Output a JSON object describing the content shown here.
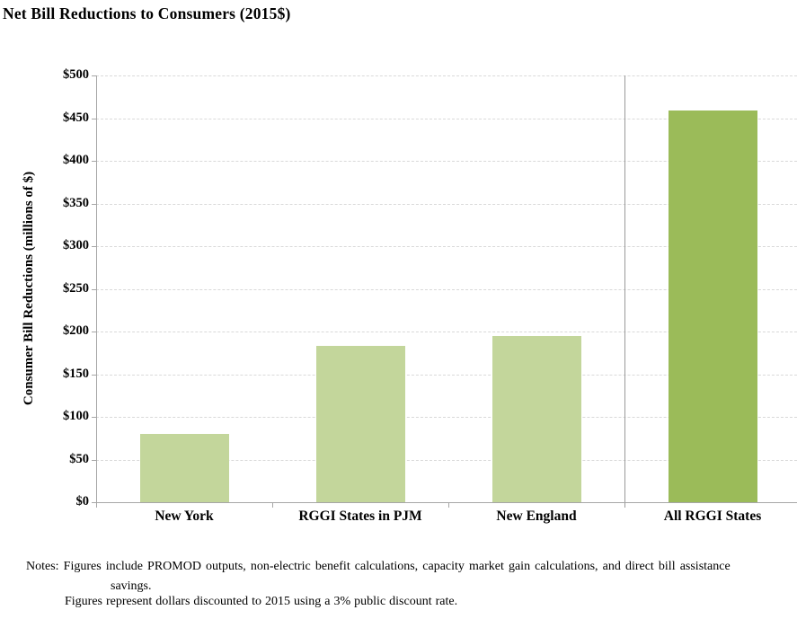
{
  "title": "Net Bill Reductions to Consumers (2015$)",
  "chart_data": {
    "type": "bar",
    "title": "Net Bill Reductions to Consumers (2015$)",
    "categories": [
      "New York",
      "RGGI States in PJM",
      "New England",
      "All RGGI States"
    ],
    "values": [
      80,
      183,
      195,
      459
    ],
    "bar_colors": [
      "#c3d69b",
      "#c3d69b",
      "#c3d69b",
      "#9bbb59"
    ],
    "xlabel": "",
    "ylabel": "Consumer Bill Reductions (millions of $)",
    "ylim": [
      0,
      500
    ],
    "ytick_step": 50,
    "ytick_prefix": "$",
    "grid": "horizontal-dashed",
    "legend": "none",
    "divider_before_index": 3,
    "annotation": "vertical separator line between individual regions and All RGGI States total"
  },
  "notes": {
    "line1": "Notes: Figures include PROMOD outputs, non-electric benefit calculations, capacity market gain calculations, and direct bill assistance",
    "line2": "savings.",
    "line3": "Figures represent dollars discounted to 2015 using a 3% public discount rate."
  },
  "colors": {
    "bar_light": "#c3d69b",
    "bar_dark": "#9bbb59",
    "axis": "#a6a6a6",
    "gridline": "#d9d9d9",
    "divider": "#999999",
    "text": "#000000"
  }
}
